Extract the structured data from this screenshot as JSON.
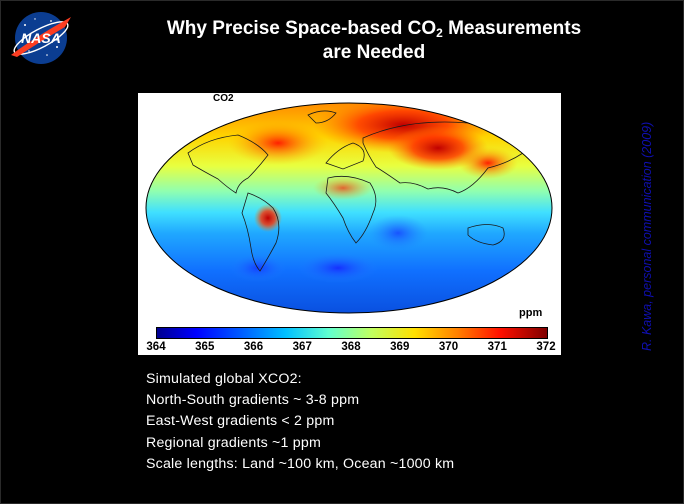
{
  "logo": {
    "text": "NASA",
    "icon": "nasa-meatball-logo"
  },
  "title": {
    "part1": "Why Precise Space-based CO",
    "subscript": "2",
    "part2": " Measurements",
    "line2": "are Needed"
  },
  "attribution": "R. Kawa, personal communication (2009)",
  "figure": {
    "top_label": "CO2",
    "colorbar_unit": "ppm",
    "colorbar_ticks": [
      "364",
      "365",
      "366",
      "367",
      "368",
      "369",
      "370",
      "371",
      "372"
    ],
    "colormap": [
      "#00008f",
      "#0000ff",
      "#0060ff",
      "#00c0ff",
      "#60ffd0",
      "#c0ff60",
      "#ffe000",
      "#ff8000",
      "#ff1000",
      "#800000"
    ]
  },
  "caption": [
    "Simulated global XCO2:",
    "North-South gradients ~ 3-8 ppm",
    "East-West gradients < 2 ppm",
    "Regional gradients ~1 ppm",
    "Scale lengths:  Land ~100 km,  Ocean ~1000 km"
  ]
}
